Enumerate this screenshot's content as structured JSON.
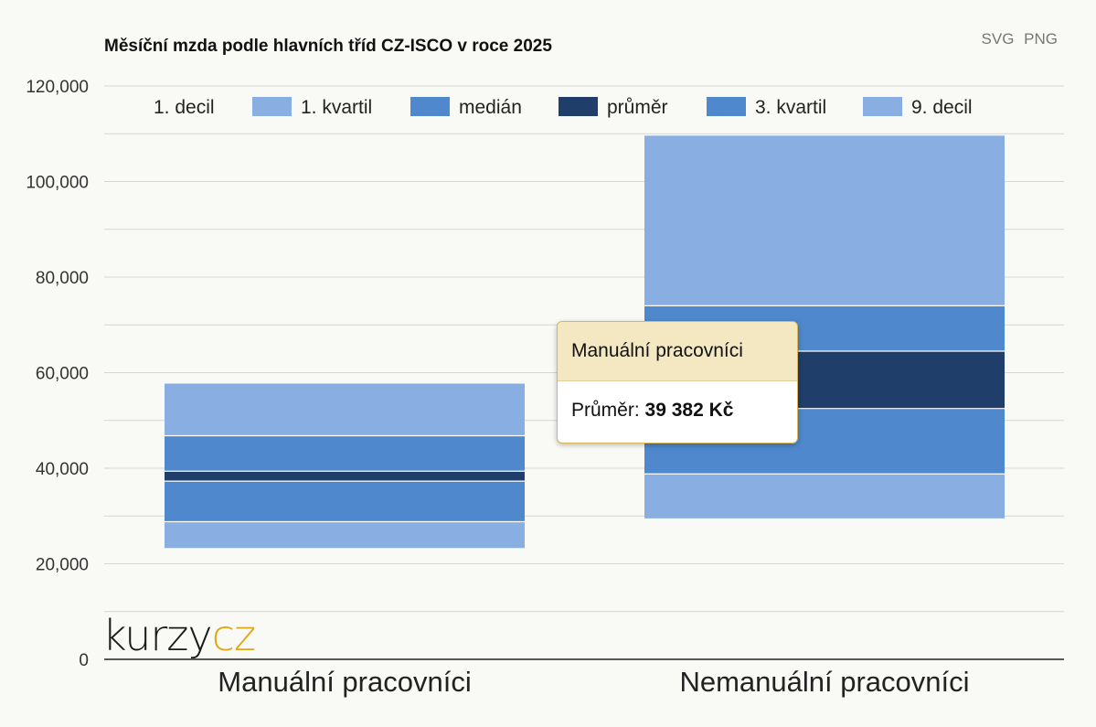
{
  "header": {
    "title": "Měsíční mzda podle hlavních tříd CZ-ISCO v roce 2025",
    "export_svg": "SVG",
    "export_png": "PNG"
  },
  "logo": {
    "part1": "kurzy",
    "part2": "cz"
  },
  "tooltip": {
    "category": "Manuální pracovníci",
    "label": "Průměr:",
    "value": "39 382 Kč"
  },
  "colors": {
    "decil": "#89afe2",
    "kvartil": "#4f88cc",
    "prumer": "#1f3e6a",
    "grid": "#d6d6d6",
    "background": "#f9f9f6"
  },
  "chart_data": {
    "type": "bar",
    "title": "Měsíční mzda podle hlavních tříd CZ-ISCO v roce 2025",
    "categories": [
      "Manuální pracovníci",
      "Nemanuální pracovníci"
    ],
    "ylim": [
      0,
      120000
    ],
    "yticks": [
      0,
      20000,
      40000,
      60000,
      80000,
      100000,
      120000
    ],
    "ytick_labels": [
      "0",
      "20,000",
      "40,000",
      "60,000",
      "80,000",
      "100,000",
      "120,000"
    ],
    "grid": true,
    "legend_position": "top",
    "legend": [
      {
        "name": "1. decil",
        "swatch": false
      },
      {
        "name": "1. kvartil",
        "swatch": true,
        "color": "#89afe2"
      },
      {
        "name": "medián",
        "swatch": true,
        "color": "#4f88cc"
      },
      {
        "name": "průměr",
        "swatch": true,
        "color": "#1f3e6a"
      },
      {
        "name": "3. kvartil",
        "swatch": true,
        "color": "#4f88cc"
      },
      {
        "name": "9. decil",
        "swatch": true,
        "color": "#89afe2"
      }
    ],
    "series": [
      {
        "name": "1. decil",
        "values": [
          23300,
          29500
        ]
      },
      {
        "name": "1. kvartil",
        "values": [
          28800,
          38800
        ]
      },
      {
        "name": "medián",
        "values": [
          37300,
          52500
        ]
      },
      {
        "name": "průměr",
        "values": [
          39382,
          64500
        ]
      },
      {
        "name": "3. kvartil",
        "values": [
          46800,
          74000
        ]
      },
      {
        "name": "9. decil",
        "values": [
          57700,
          109600
        ]
      }
    ]
  }
}
